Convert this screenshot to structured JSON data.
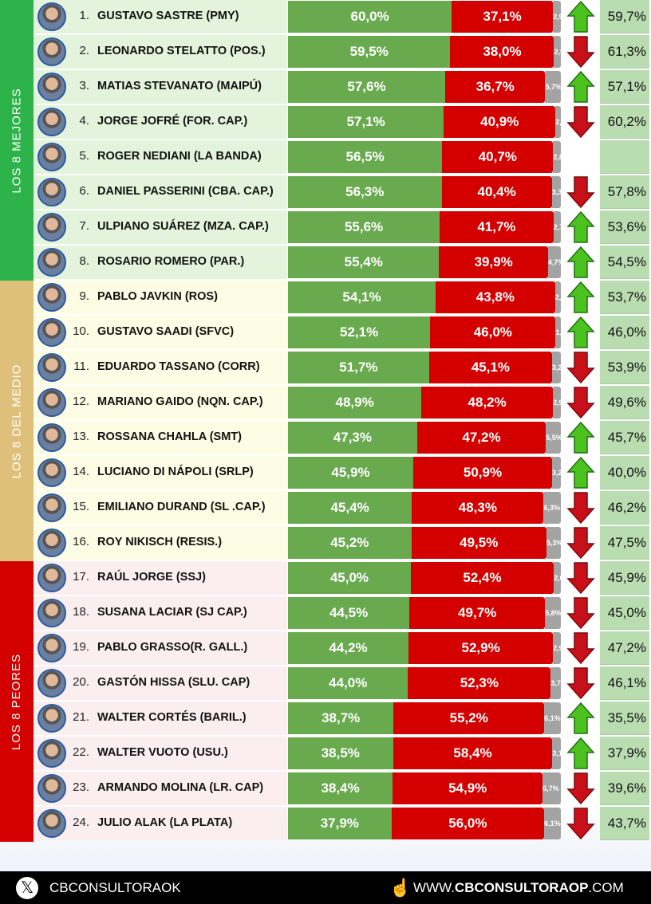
{
  "groups": [
    {
      "label": "LOS 8 MEJORES",
      "color": "#2db34a",
      "row_bg": "#e3f3dc"
    },
    {
      "label": "LOS 8 DEL MEDIO",
      "color": "#dfc07a",
      "row_bg": "#fdfce4"
    },
    {
      "label": "LOS 8 PEORES",
      "color": "#d40000",
      "row_bg": "#fbeeee"
    }
  ],
  "colors": {
    "approve": "#6aaa4f",
    "disapprove": "#d40000",
    "nsnc": "#a3a3a3",
    "previous_bg": "#b9dcb0",
    "arrow_up": "#4cc21f",
    "arrow_down": "#c8101a"
  },
  "chart_data": {
    "type": "bar",
    "stacked": true,
    "rows": [
      {
        "rank": "1.",
        "name": "GUSTAVO SASTRE (PMY)",
        "approve": "60,0%",
        "disapprove": "37,1%",
        "nsnc": "2,9%",
        "trend": "up",
        "previous": "59,7%"
      },
      {
        "rank": "2.",
        "name": "LEONARDO STELATTO (POS.)",
        "approve": "59,5%",
        "disapprove": "38,0%",
        "nsnc": "2,5%",
        "trend": "down",
        "previous": "61,3%"
      },
      {
        "rank": "3.",
        "name": "MATIAS STEVANATO (MAIPÚ)",
        "approve": "57,6%",
        "disapprove": "36,7%",
        "nsnc": "5,7%",
        "trend": "up",
        "previous": "57,1%"
      },
      {
        "rank": "4.",
        "name": "JORGE JOFRÉ (FOR. CAP.)",
        "approve": "57,1%",
        "disapprove": "40,9%",
        "nsnc": "2,0%",
        "trend": "down",
        "previous": "60,2%"
      },
      {
        "rank": "5.",
        "name": "ROGER NEDIANI (LA BANDA)",
        "approve": "56,5%",
        "disapprove": "40,7%",
        "nsnc": "2,8%",
        "trend": "none",
        "previous": ""
      },
      {
        "rank": "6.",
        "name": "DANIEL PASSERINI (CBA. CAP.)",
        "approve": "56,3%",
        "disapprove": "40,4%",
        "nsnc": "3,3%",
        "trend": "down",
        "previous": "57,8%"
      },
      {
        "rank": "7.",
        "name": "ULPIANO SUÁREZ (MZA. CAP.)",
        "approve": "55,6%",
        "disapprove": "41,7%",
        "nsnc": "2,7%",
        "trend": "up",
        "previous": "53,6%"
      },
      {
        "rank": "8.",
        "name": "ROSARIO ROMERO (PAR.)",
        "approve": "55,4%",
        "disapprove": "39,9%",
        "nsnc": "4,7%",
        "trend": "up",
        "previous": "54,5%"
      },
      {
        "rank": "9.",
        "name": "PABLO JAVKIN (ROS)",
        "approve": "54,1%",
        "disapprove": "43,8%",
        "nsnc": "2,1%",
        "trend": "up",
        "previous": "53,7%"
      },
      {
        "rank": "10.",
        "name": "GUSTAVO SAADI (SFVC)",
        "approve": "52,1%",
        "disapprove": "46,0%",
        "nsnc": "1,9%",
        "trend": "up",
        "previous": "46,0%"
      },
      {
        "rank": "11.",
        "name": "EDUARDO TASSANO (CORR)",
        "approve": "51,7%",
        "disapprove": "45,1%",
        "nsnc": "3,2%",
        "trend": "down",
        "previous": "53,9%"
      },
      {
        "rank": "12.",
        "name": "MARIANO GAIDO (NQN. CAP.)",
        "approve": "48,9%",
        "disapprove": "48,2%",
        "nsnc": "2,9%",
        "trend": "down",
        "previous": "49,6%"
      },
      {
        "rank": "13.",
        "name": "ROSSANA CHAHLA (SMT)",
        "approve": "47,3%",
        "disapprove": "47,2%",
        "nsnc": "5,5%",
        "trend": "up",
        "previous": "45,7%"
      },
      {
        "rank": "14.",
        "name": "LUCIANO DI NÁPOLI (SRLP)",
        "approve": "45,9%",
        "disapprove": "50,9%",
        "nsnc": "3,2%",
        "trend": "up",
        "previous": "40,0%"
      },
      {
        "rank": "15.",
        "name": "EMILIANO DURAND (SL .CAP.)",
        "approve": "45,4%",
        "disapprove": "48,3%",
        "nsnc": "6,3%",
        "trend": "down",
        "previous": "46,2%"
      },
      {
        "rank": "16.",
        "name": "ROY NIKISCH (RESIS.)",
        "approve": "45,2%",
        "disapprove": "49,5%",
        "nsnc": "5,3%",
        "trend": "down",
        "previous": "47,5%"
      },
      {
        "rank": "17.",
        "name": "RAÚL JORGE (SSJ)",
        "approve": "45,0%",
        "disapprove": "52,4%",
        "nsnc": "2,6%",
        "trend": "down",
        "previous": "45,9%"
      },
      {
        "rank": "18.",
        "name": "SUSANA LACIAR (SJ CAP.)",
        "approve": "44,5%",
        "disapprove": "49,7%",
        "nsnc": "5,8%",
        "trend": "down",
        "previous": "45,0%"
      },
      {
        "rank": "19.",
        "name": "PABLO GRASSO(R. GALL.)",
        "approve": "44,2%",
        "disapprove": "52,9%",
        "nsnc": "2,9%",
        "trend": "down",
        "previous": "47,2%"
      },
      {
        "rank": "20.",
        "name": "GASTÓN HISSA (SLU. CAP)",
        "approve": "44,0%",
        "disapprove": "52,3%",
        "nsnc": "3,7%",
        "trend": "down",
        "previous": "46,1%"
      },
      {
        "rank": "21.",
        "name": "WALTER CORTÉS (BARIL.)",
        "approve": "38,7%",
        "disapprove": "55,2%",
        "nsnc": "6,1%",
        "trend": "up",
        "previous": "35,5%"
      },
      {
        "rank": "22.",
        "name": "WALTER VUOTO (USU.)",
        "approve": "38,5%",
        "disapprove": "58,4%",
        "nsnc": "3,1%",
        "trend": "up",
        "previous": "37,9%"
      },
      {
        "rank": "23.",
        "name": "ARMANDO MOLINA (LR. CAP)",
        "approve": "38,4%",
        "disapprove": "54,9%",
        "nsnc": "6,7%",
        "trend": "down",
        "previous": "39,6%"
      },
      {
        "rank": "24.",
        "name": "JULIO ALAK (LA PLATA)",
        "approve": "37,9%",
        "disapprove": "56,0%",
        "nsnc": "6,1%",
        "trend": "down",
        "previous": "43,7%"
      }
    ]
  },
  "footer": {
    "handle": "CBCONSULTORAOK",
    "web_prefix": "WWW.",
    "web_bold": "CBCONSULTORAOP",
    "web_suffix": ".COM"
  }
}
